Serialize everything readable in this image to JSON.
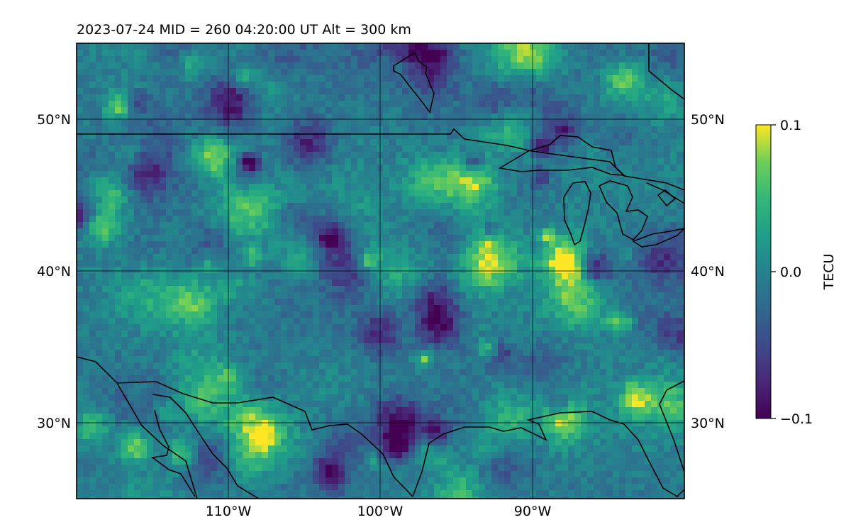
{
  "title": "2023-07-24  MID = 260    04:20:00  UT  Alt = 300 km",
  "map": {
    "lon_range": [
      -120,
      -80
    ],
    "lat_range": [
      25,
      55
    ],
    "lat_ticks": [
      {
        "value": 50,
        "label": "50°N"
      },
      {
        "value": 40,
        "label": "40°N"
      },
      {
        "value": 30,
        "label": "30°N"
      }
    ],
    "lon_ticks": [
      {
        "value": -110,
        "label": "110°W"
      },
      {
        "value": -100,
        "label": "100°W"
      },
      {
        "value": -90,
        "label": "90°W"
      }
    ],
    "gridlines": true,
    "coastlines": true,
    "borders": true
  },
  "colorbar": {
    "label": "TECU",
    "colormap": "viridis",
    "range": [
      -0.1,
      0.1
    ],
    "ticks": [
      {
        "value": 0.1,
        "label": "0.1"
      },
      {
        "value": 0.0,
        "label": "0.0"
      },
      {
        "value": -0.1,
        "label": "−0.1"
      }
    ]
  }
}
